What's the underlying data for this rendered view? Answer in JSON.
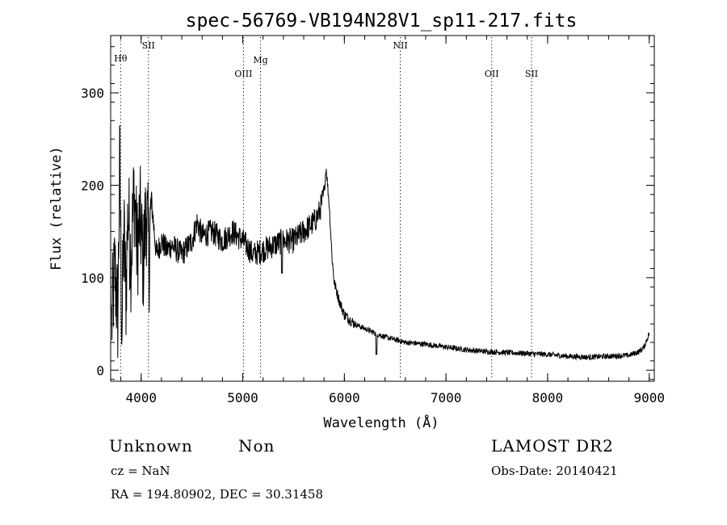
{
  "chart_data": {
    "type": "line",
    "title": "spec-56769-VB194N28V1_sp11-217.fits",
    "xlabel": "Wavelength (Å)",
    "ylabel": "Flux (relative)",
    "xlim": [
      3700,
      9050
    ],
    "ylim": [
      -12,
      362
    ],
    "x_ticks": [
      4000,
      5000,
      6000,
      7000,
      8000,
      9000
    ],
    "y_ticks": [
      0,
      100,
      200,
      300
    ],
    "grid": false,
    "line_color": "#000000",
    "lines": [
      {
        "label": "Hθ",
        "wavelength": 3798
      },
      {
        "label": "SII",
        "wavelength": 4072
      },
      {
        "label": "OIII",
        "wavelength": 5007
      },
      {
        "label": "Mg",
        "wavelength": 5175
      },
      {
        "label": "NII",
        "wavelength": 6550
      },
      {
        "label": "OII",
        "wavelength": 7450
      },
      {
        "label": "SII",
        "wavelength": 7842
      }
    ],
    "series": [
      {
        "x": [
          3710,
          3740,
          3770,
          3790,
          3810,
          3830,
          3850,
          3870,
          3900,
          3930,
          3960,
          3990,
          4020,
          4050,
          4080,
          4100,
          4150,
          4200,
          4250,
          4300,
          4400,
          4500,
          4550,
          4600,
          4700,
          4800,
          4900,
          5000,
          5100,
          5200,
          5300,
          5400,
          5500,
          5600,
          5700,
          5750,
          5800,
          5820,
          5850,
          5880,
          5900,
          5950,
          6000,
          6100,
          6200,
          6300,
          6400,
          6500,
          6600,
          6800,
          7000,
          7200,
          7400,
          7600,
          7800,
          8000,
          8200,
          8400,
          8600,
          8800,
          8900,
          8950,
          9000
        ],
        "y": [
          50,
          110,
          60,
          230,
          40,
          150,
          80,
          175,
          120,
          195,
          130,
          165,
          115,
          175,
          120,
          185,
          125,
          140,
          130,
          135,
          125,
          140,
          160,
          145,
          150,
          140,
          150,
          140,
          125,
          130,
          135,
          140,
          140,
          150,
          160,
          170,
          190,
          220,
          180,
          120,
          95,
          75,
          60,
          50,
          45,
          40,
          36,
          33,
          30,
          28,
          25,
          22,
          20,
          19,
          18,
          17,
          15,
          14,
          15,
          16,
          20,
          25,
          40
        ]
      }
    ]
  },
  "info": {
    "object_class": "Unknown",
    "subclass": "Non",
    "survey": "LAMOST DR2",
    "cz": "cz = NaN",
    "obs_date": "Obs-Date: 20140421",
    "coords": "RA = 194.80902, DEC =  30.31458"
  }
}
